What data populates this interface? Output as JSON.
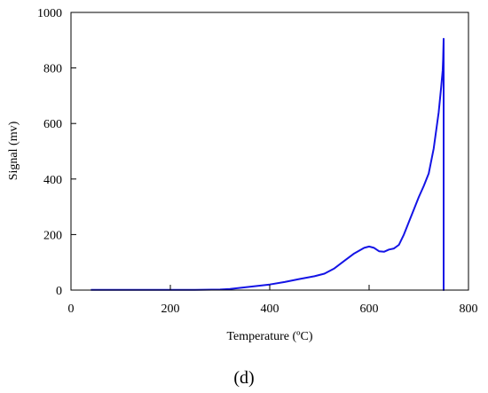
{
  "chart_data": {
    "type": "line",
    "xlabel": "Temperature (ºC)",
    "ylabel": "Signal (mv)",
    "xlim": [
      0,
      800
    ],
    "ylim": [
      0,
      1000
    ],
    "xticks": [
      0,
      200,
      400,
      600,
      800
    ],
    "yticks": [
      0,
      200,
      400,
      600,
      800,
      1000
    ],
    "xtick_labels": [
      "0",
      "200",
      "400",
      "600",
      "800"
    ],
    "ytick_labels": [
      "0",
      "200",
      "400",
      "600",
      "800",
      "1000"
    ],
    "grid": false,
    "series_color": "#1414e6",
    "series": [
      {
        "x": [
          40,
          100,
          150,
          200,
          250,
          300,
          320,
          350,
          380,
          400,
          430,
          460,
          490,
          510,
          530,
          550,
          570,
          590,
          600,
          610,
          620,
          630,
          640,
          650,
          660,
          670,
          680,
          690,
          700,
          710,
          720,
          730,
          740,
          745,
          748,
          749,
          750,
          750,
          749
        ],
        "y": [
          1,
          1,
          1,
          1,
          1,
          2,
          4,
          10,
          16,
          20,
          29,
          40,
          50,
          59,
          78,
          105,
          132,
          152,
          157,
          152,
          140,
          138,
          146,
          150,
          163,
          200,
          245,
          290,
          335,
          375,
          420,
          510,
          640,
          730,
          790,
          830,
          905,
          0,
          0
        ]
      }
    ]
  },
  "panel_label": "(d)"
}
